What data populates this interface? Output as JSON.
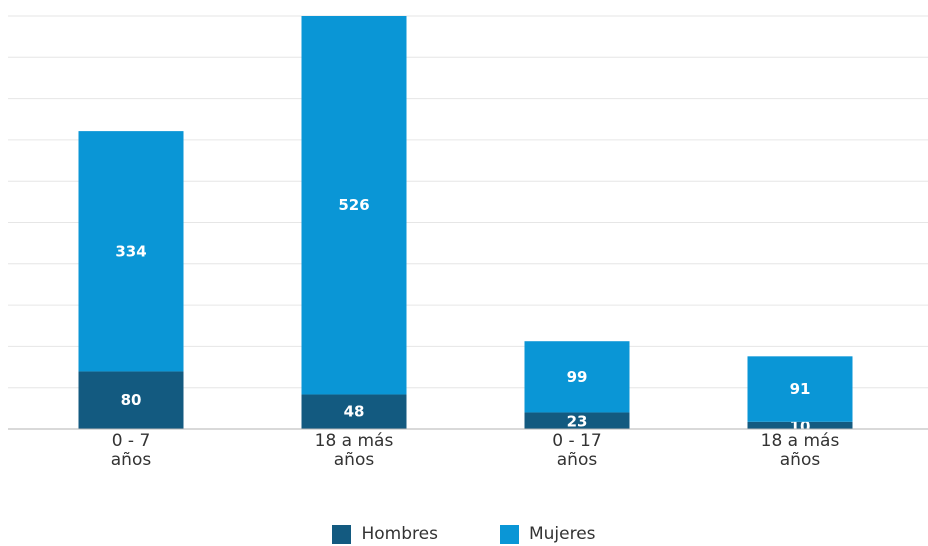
{
  "chart_data": {
    "type": "bar",
    "stacked": true,
    "categories": [
      [
        "0 - 7",
        "años"
      ],
      [
        "18 a más",
        "años"
      ],
      [
        "0 - 17",
        "años"
      ],
      [
        "18 a más",
        "años"
      ]
    ],
    "series": [
      {
        "name": "Hombres",
        "values": [
          80,
          48,
          23,
          10
        ],
        "color": "#135a80"
      },
      {
        "name": "Mujeres",
        "values": [
          334,
          526,
          99,
          91
        ],
        "color": "#0a96d6"
      }
    ],
    "ylim": [
      0,
      574
    ],
    "grid": true,
    "legend_position": "bottom-center",
    "data_labels": true,
    "title": "",
    "xlabel": "",
    "ylabel": ""
  },
  "colors": {
    "grid": "#e6e6e6",
    "axis": "#b3b3b3",
    "label_text": "#ffffff",
    "tick_text": "#333333"
  }
}
